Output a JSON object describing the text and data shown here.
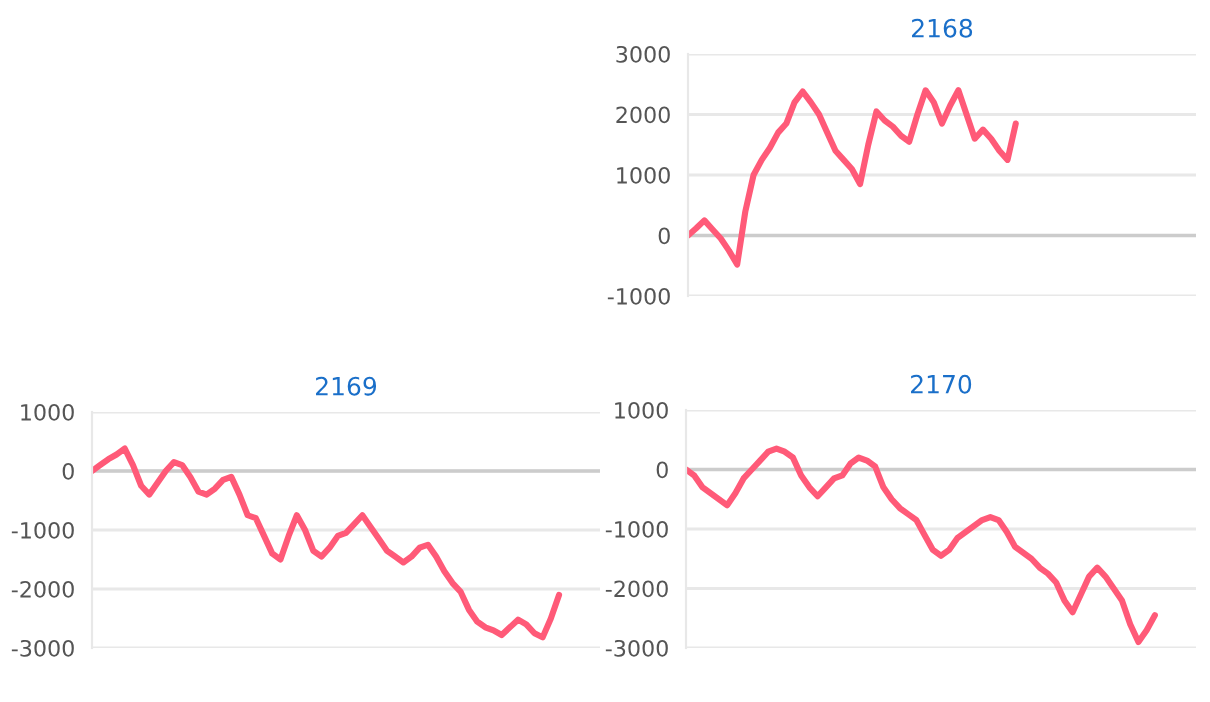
{
  "chart_data": [
    {
      "type": "line",
      "title": "2168",
      "categories": [
        null,
        null,
        null,
        null,
        null,
        null,
        null,
        null,
        null,
        null,
        null,
        null,
        null,
        null,
        null,
        null,
        null,
        null,
        null,
        null,
        null,
        null,
        null,
        null,
        null,
        null,
        null,
        null,
        null,
        null,
        null,
        null,
        null,
        null,
        null,
        null,
        null,
        null,
        null,
        null,
        null,
        null,
        null,
        null,
        null,
        null,
        null,
        null,
        null,
        null,
        null,
        null,
        null,
        null,
        null,
        null,
        null,
        null,
        null,
        null,
        null,
        null,
        null
      ],
      "series": [
        {
          "color": "#ff5a78",
          "values": [
            0,
            120,
            250,
            100,
            -50,
            -250,
            -480,
            400,
            1000,
            1250,
            1450,
            1700,
            1850,
            2200,
            2380,
            2200,
            2000,
            1700,
            1400,
            1250,
            1100,
            850,
            1500,
            2050,
            1900,
            1800,
            1650,
            1550,
            2000,
            2400,
            2200,
            1850,
            2150,
            2400,
            2000,
            1600,
            1750,
            1600,
            1400,
            1250,
            1850,
            null,
            null,
            null,
            null,
            null,
            null,
            null,
            null,
            null,
            null,
            null,
            null,
            null,
            null,
            null,
            null,
            null,
            null,
            null,
            null,
            null,
            null
          ]
        }
      ],
      "ylim": [
        -1000,
        3000
      ],
      "yticks": [
        -1000,
        0,
        1000,
        2000,
        3000
      ],
      "grid": "y",
      "tick_labels": "y",
      "legend": false,
      "marker": "none",
      "line_style": "solid"
    },
    {
      "type": "line",
      "title": "2169",
      "categories": [
        null,
        null,
        null,
        null,
        null,
        null,
        null,
        null,
        null,
        null,
        null,
        null,
        null,
        null,
        null,
        null,
        null,
        null,
        null,
        null,
        null,
        null,
        null,
        null,
        null,
        null,
        null,
        null,
        null,
        null,
        null,
        null,
        null,
        null,
        null,
        null,
        null,
        null,
        null,
        null,
        null,
        null,
        null,
        null,
        null,
        null,
        null,
        null,
        null,
        null,
        null,
        null,
        null,
        null,
        null,
        null,
        null,
        null,
        null,
        null,
        null,
        null,
        null
      ],
      "series": [
        {
          "color": "#ff5a78",
          "values": [
            0,
            100,
            200,
            280,
            380,
            100,
            -250,
            -400,
            -200,
            0,
            150,
            100,
            -100,
            -350,
            -400,
            -300,
            -150,
            -100,
            -400,
            -750,
            -800,
            -1100,
            -1400,
            -1500,
            -1100,
            -750,
            -1000,
            -1350,
            -1450,
            -1300,
            -1100,
            -1050,
            -900,
            -750,
            -950,
            -1150,
            -1350,
            -1450,
            -1550,
            -1450,
            -1300,
            -1250,
            -1450,
            -1700,
            -1900,
            -2050,
            -2350,
            -2550,
            -2650,
            -2700,
            -2780,
            -2650,
            -2520,
            -2600,
            -2750,
            -2820,
            -2500,
            -2100,
            null,
            null,
            null,
            null,
            null
          ]
        }
      ],
      "ylim": [
        -3000,
        1000
      ],
      "yticks": [
        -3000,
        -2000,
        -1000,
        0,
        1000
      ],
      "grid": "y",
      "tick_labels": "y",
      "legend": false,
      "marker": "none",
      "line_style": "solid"
    },
    {
      "type": "line",
      "title": "2170",
      "categories": [
        null,
        null,
        null,
        null,
        null,
        null,
        null,
        null,
        null,
        null,
        null,
        null,
        null,
        null,
        null,
        null,
        null,
        null,
        null,
        null,
        null,
        null,
        null,
        null,
        null,
        null,
        null,
        null,
        null,
        null,
        null,
        null,
        null,
        null,
        null,
        null,
        null,
        null,
        null,
        null,
        null,
        null,
        null,
        null,
        null,
        null,
        null,
        null,
        null,
        null,
        null,
        null,
        null,
        null,
        null,
        null,
        null,
        null,
        null,
        null,
        null,
        null,
        null
      ],
      "series": [
        {
          "color": "#ff5a78",
          "values": [
            0,
            -100,
            -300,
            -400,
            -500,
            -600,
            -400,
            -150,
            0,
            150,
            300,
            350,
            300,
            200,
            -100,
            -300,
            -450,
            -300,
            -150,
            -100,
            100,
            200,
            150,
            50,
            -300,
            -500,
            -650,
            -750,
            -850,
            -1100,
            -1350,
            -1450,
            -1350,
            -1150,
            -1050,
            -950,
            -850,
            -800,
            -850,
            -1050,
            -1300,
            -1400,
            -1500,
            -1650,
            -1750,
            -1900,
            -2200,
            -2400,
            -2100,
            -1800,
            -1650,
            -1800,
            -2000,
            -2200,
            -2600,
            -2900,
            -2700,
            -2450,
            null,
            null,
            null,
            null,
            null
          ]
        }
      ],
      "ylim": [
        -3000,
        1000
      ],
      "yticks": [
        -3000,
        -2000,
        -1000,
        0,
        1000
      ],
      "grid": "y",
      "tick_labels": "y",
      "legend": false,
      "marker": "none",
      "line_style": "solid"
    }
  ]
}
